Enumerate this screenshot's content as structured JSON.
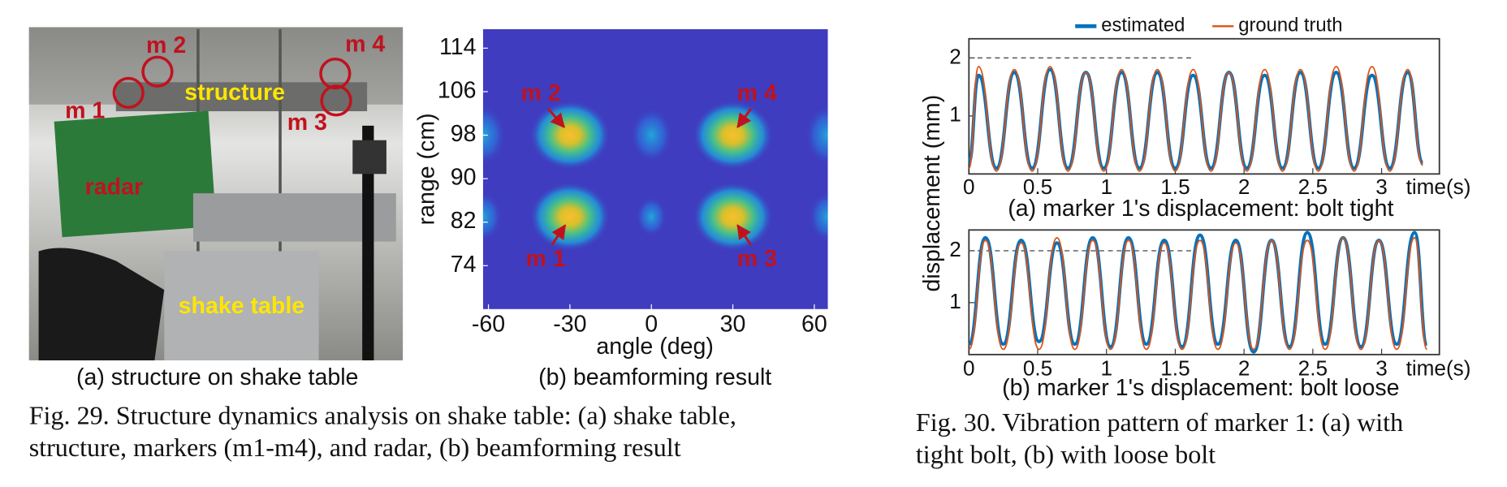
{
  "fig29": {
    "photo": {
      "caption": "(a) structure on shake table",
      "labels": [
        "m 1",
        "m 2",
        "m 3",
        "m 4",
        "structure",
        "radar",
        "shake table"
      ]
    },
    "heatmap": {
      "type": "heatmap",
      "caption": "(b) beamforming result",
      "xlabel": "angle (deg)",
      "ylabel": "range (cm)",
      "xlim": [
        -62,
        65
      ],
      "ylim": [
        66,
        117.5
      ],
      "xticks": [
        -60,
        -30,
        0,
        30,
        60
      ],
      "yticks": [
        74,
        82,
        90,
        98,
        106,
        114
      ],
      "peaks": [
        {
          "label": "m 1",
          "angle": -30,
          "range": 83
        },
        {
          "label": "m 2",
          "angle": -30,
          "range": 98
        },
        {
          "label": "m 3",
          "angle": 30,
          "range": 83
        },
        {
          "label": "m 4",
          "angle": 30,
          "range": 98
        }
      ]
    },
    "caption": [
      "Fig. 29.  Structure dynamics analysis on shake table: (a) shake table,",
      "structure, markers (m1-m4), and radar, (b) beamforming result"
    ]
  },
  "fig30": {
    "legend": [
      {
        "name": "estimated",
        "color": "#0072bd"
      },
      {
        "name": "ground truth",
        "color": "#d95319"
      }
    ],
    "ylabel": "displacement (mm)",
    "charts": [
      {
        "type": "line",
        "subtitle": "(a) marker 1's displacement: bolt tight",
        "xlabel": "time(s)",
        "xlim": [
          0,
          3.42
        ],
        "ylim": [
          0,
          2.33
        ],
        "xticks": [
          0,
          0.5,
          1,
          1.5,
          2,
          2.5,
          3
        ],
        "yticks": [
          1,
          2
        ],
        "hline": {
          "y": 2,
          "x_end": 1.62
        },
        "x": [
          0,
          0.07,
          0.2,
          0.33,
          0.46,
          0.59,
          0.72,
          0.85,
          0.98,
          1.11,
          1.24,
          1.37,
          1.5,
          1.63,
          1.76,
          1.89,
          2.02,
          2.15,
          2.28,
          2.41,
          2.54,
          2.67,
          2.8,
          2.93,
          3.06,
          3.19,
          3.3
        ],
        "series": [
          {
            "values": [
              0.2,
              1.7,
              0.1,
              1.75,
              0.1,
              1.8,
              0.1,
              1.75,
              0.1,
              1.75,
              0.1,
              1.75,
              0.1,
              1.7,
              0.1,
              1.75,
              0.1,
              1.7,
              0.1,
              1.75,
              0.1,
              1.75,
              0.1,
              1.7,
              0.1,
              1.75,
              0.2
            ]
          },
          {
            "values": [
              0.1,
              1.85,
              0.05,
              1.8,
              0.05,
              1.85,
              0.05,
              1.75,
              0.05,
              1.8,
              0.05,
              1.8,
              0.05,
              1.8,
              0.05,
              1.75,
              0.05,
              1.8,
              0.05,
              1.8,
              0.05,
              1.85,
              0.05,
              1.85,
              0.05,
              1.8,
              0.15
            ]
          }
        ]
      },
      {
        "type": "line",
        "subtitle": "(b) marker 1's displacement: bolt loose",
        "xlabel": "time(s)",
        "xlim": [
          0,
          3.42
        ],
        "ylim": [
          0,
          2.4
        ],
        "xticks": [
          0,
          0.5,
          1,
          1.5,
          2,
          2.5,
          3
        ],
        "yticks": [
          1,
          2
        ],
        "hline": {
          "y": 2,
          "x_end": 1.62
        },
        "x": [
          0,
          0.12,
          0.25,
          0.38,
          0.51,
          0.64,
          0.77,
          0.9,
          1.03,
          1.16,
          1.29,
          1.42,
          1.55,
          1.68,
          1.81,
          1.94,
          2.07,
          2.2,
          2.33,
          2.46,
          2.59,
          2.72,
          2.85,
          2.98,
          3.11,
          3.24,
          3.33
        ],
        "series": [
          {
            "values": [
              0.2,
              2.25,
              0.2,
              2.2,
              0.25,
              2.15,
              0.2,
              2.25,
              0.15,
              2.25,
              0.2,
              2.2,
              0.15,
              2.3,
              0.2,
              2.2,
              0.05,
              2.2,
              0.15,
              2.35,
              0.2,
              2.25,
              0.15,
              2.2,
              0.2,
              2.35,
              0.2
            ]
          },
          {
            "values": [
              0.1,
              2.2,
              0.1,
              2.15,
              0.1,
              2.25,
              0.1,
              2.2,
              0.1,
              2.2,
              0.1,
              2.15,
              0.1,
              2.2,
              0.1,
              2.15,
              0.1,
              2.2,
              0.1,
              2.2,
              0.1,
              2.25,
              0.1,
              2.2,
              0.1,
              2.25,
              0.1
            ]
          }
        ]
      }
    ],
    "caption": [
      "Fig. 30.  Vibration pattern of marker 1: (a) with",
      "tight bolt, (b) with loose bolt"
    ]
  }
}
